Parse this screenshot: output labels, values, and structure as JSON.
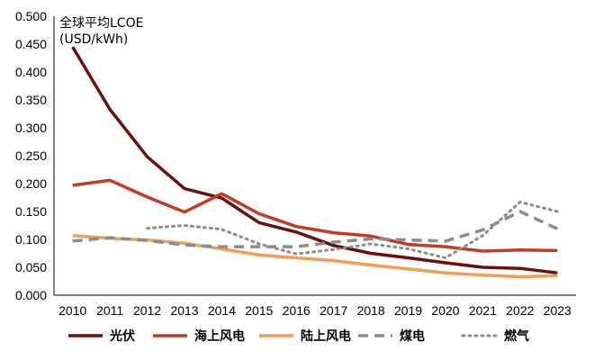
{
  "chart_data": {
    "type": "line",
    "unit_label_line1": "全球平均LCOE",
    "unit_label_line2": "(USD/kWh)",
    "x": [
      "2010",
      "2011",
      "2012",
      "2013",
      "2014",
      "2015",
      "2016",
      "2017",
      "2018",
      "2019",
      "2020",
      "2021",
      "2022",
      "2023"
    ],
    "ylim": [
      0,
      0.5
    ],
    "yticks": [
      "0.000",
      "0.050",
      "0.100",
      "0.150",
      "0.200",
      "0.250",
      "0.300",
      "0.350",
      "0.400",
      "0.450",
      "0.500"
    ],
    "grid": false,
    "legend_position": "bottom",
    "series": [
      {
        "name": "光伏",
        "color": "#6b0f0f",
        "style": "solid",
        "values": [
          0.445,
          0.333,
          0.248,
          0.191,
          0.174,
          0.13,
          0.113,
          0.089,
          0.075,
          0.067,
          0.058,
          0.05,
          0.048,
          0.04
        ]
      },
      {
        "name": "海上风电",
        "color": "#c23b22",
        "style": "solid",
        "values": [
          0.197,
          0.206,
          0.176,
          0.149,
          0.182,
          0.146,
          0.123,
          0.112,
          0.106,
          0.091,
          0.087,
          0.079,
          0.081,
          0.08
        ]
      },
      {
        "name": "陆上风电",
        "color": "#f0a055",
        "style": "solid",
        "values": [
          0.107,
          0.102,
          0.099,
          0.093,
          0.083,
          0.072,
          0.067,
          0.062,
          0.054,
          0.047,
          0.04,
          0.036,
          0.033,
          0.035
        ]
      },
      {
        "name": "煤电",
        "color": "#8c8c8c",
        "style": "dashed",
        "values": [
          0.097,
          0.103,
          0.098,
          0.09,
          0.087,
          0.087,
          0.087,
          0.095,
          0.101,
          0.099,
          0.097,
          0.117,
          0.15,
          0.119
        ]
      },
      {
        "name": "燃气",
        "color": "#8c8c8c",
        "style": "dotted",
        "values": [
          null,
          null,
          0.12,
          0.125,
          0.118,
          0.092,
          0.074,
          0.082,
          0.092,
          0.083,
          0.067,
          0.107,
          0.167,
          0.15
        ]
      }
    ]
  }
}
